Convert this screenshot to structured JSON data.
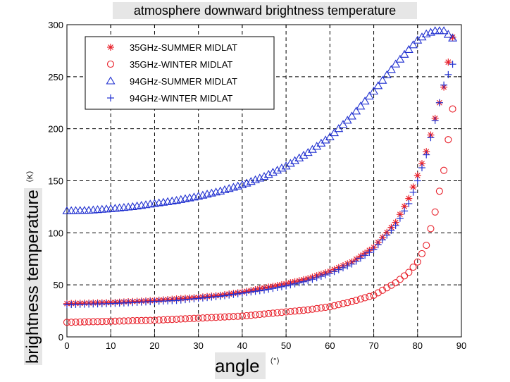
{
  "chart_data": {
    "type": "scatter",
    "title": "atmosphere downward brightness temperature",
    "xlabel": "angle",
    "xunit": "（°）",
    "ylabel": "brightness temperature",
    "yunit": "（K）",
    "xlim": [
      0,
      90
    ],
    "ylim": [
      0,
      300
    ],
    "xticks": [
      0,
      10,
      20,
      30,
      40,
      50,
      60,
      70,
      80,
      90
    ],
    "yticks": [
      0,
      50,
      100,
      150,
      200,
      250,
      300
    ],
    "grid": true,
    "legend_position": "top-left",
    "x": [
      0,
      5,
      10,
      15,
      20,
      25,
      30,
      35,
      40,
      45,
      50,
      55,
      60,
      65,
      70,
      75,
      78,
      80,
      82,
      84,
      86,
      88
    ],
    "series": [
      {
        "name": "35GHz-SUMMER MIDLAT",
        "marker": "star",
        "color": "#e8202a",
        "values": [
          32,
          32.5,
          33,
          34,
          35,
          36.5,
          38,
          40,
          43,
          47,
          51,
          56,
          63,
          72,
          86,
          110,
          133,
          155,
          178,
          210,
          240,
          288
        ]
      },
      {
        "name": "35GHz-WINTER MIDLAT",
        "marker": "circle",
        "color": "#e8202a",
        "values": [
          14,
          14.5,
          15,
          15.5,
          16,
          17,
          18,
          19,
          20,
          22,
          24,
          26,
          29,
          34,
          40,
          52,
          62,
          72,
          88,
          120,
          160,
          219
        ]
      },
      {
        "name": "94GHz-SUMMER MIDLAT",
        "marker": "triangle",
        "color": "#2030d0",
        "values": [
          121,
          121.5,
          123,
          125,
          128,
          131,
          135,
          140,
          146,
          154,
          164,
          177,
          192,
          212,
          236,
          262,
          276,
          285,
          291,
          294,
          294,
          287
        ]
      },
      {
        "name": "94GHz-WINTER MIDLAT",
        "marker": "plus",
        "color": "#2030d0",
        "values": [
          31,
          31.5,
          32,
          33,
          34,
          35,
          37,
          39,
          42,
          45,
          49,
          54,
          61,
          70,
          84,
          107,
          128,
          150,
          175,
          208,
          242,
          262
        ]
      }
    ]
  }
}
